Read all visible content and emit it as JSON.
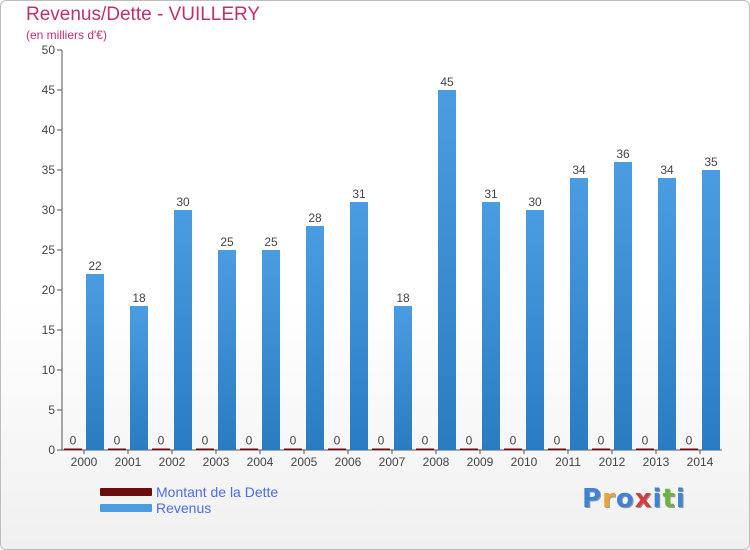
{
  "title": "Revenus/Dette - VUILLERY",
  "subtitle": "(en milliers d'€)",
  "logo": {
    "text": "Proxiti",
    "letters": [
      "P",
      "r",
      "o",
      "x",
      "i",
      "t",
      "i"
    ],
    "letter_colors": [
      "#3f83d6",
      "#e8a33a",
      "#3f83d6",
      "#d33d3d",
      "#3f83d6",
      "#6cb33f",
      "#3f83d6"
    ]
  },
  "colors": {
    "dette": "#6b0d0d",
    "revenus": "#4a9de0",
    "revenus_dark": "#2a7cc2",
    "axis": "#555555",
    "grid": "#e6e6e6"
  },
  "legend": [
    {
      "label": "Montant de la Dette",
      "color": "#6b0d0d"
    },
    {
      "label": "Revenus",
      "color": "#4a9de0"
    }
  ],
  "chart_data": {
    "type": "bar",
    "title": "Revenus/Dette - VUILLERY",
    "subtitle": "(en milliers d'€)",
    "xlabel": "",
    "ylabel": "",
    "ylim": [
      0,
      50
    ],
    "yticks": [
      0,
      5,
      10,
      15,
      20,
      25,
      30,
      35,
      40,
      45,
      50
    ],
    "grid": false,
    "legend_position": "bottom-left",
    "categories": [
      "2000",
      "2001",
      "2002",
      "2003",
      "2004",
      "2005",
      "2006",
      "2007",
      "2008",
      "2009",
      "2010",
      "2011",
      "2012",
      "2013",
      "2014"
    ],
    "series": [
      {
        "name": "Montant de la Dette",
        "values": [
          0,
          0,
          0,
          0,
          0,
          0,
          0,
          0,
          0,
          0,
          0,
          0,
          0,
          0,
          0
        ]
      },
      {
        "name": "Revenus",
        "values": [
          22,
          18,
          30,
          25,
          25,
          28,
          31,
          18,
          45,
          31,
          30,
          34,
          36,
          34,
          35
        ]
      }
    ]
  }
}
